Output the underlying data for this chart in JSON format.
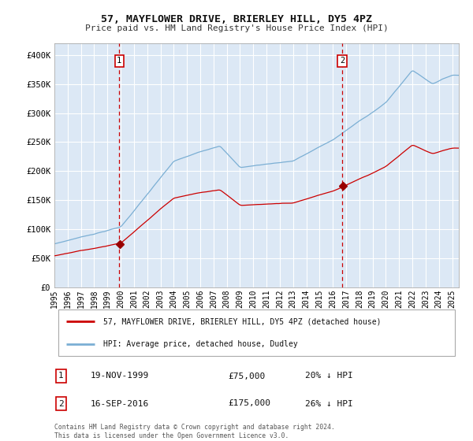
{
  "title": "57, MAYFLOWER DRIVE, BRIERLEY HILL, DY5 4PZ",
  "subtitle": "Price paid vs. HM Land Registry's House Price Index (HPI)",
  "background_color": "#dce8f5",
  "fig_bg_color": "#ffffff",
  "sale1_date": 1999.89,
  "sale1_price": 75000,
  "sale1_label": "1",
  "sale2_date": 2016.71,
  "sale2_price": 175000,
  "sale2_label": "2",
  "sale1_info": "19-NOV-1999",
  "sale1_price_str": "£75,000",
  "sale1_pct": "20% ↓ HPI",
  "sale2_info": "16-SEP-2016",
  "sale2_price_str": "£175,000",
  "sale2_pct": "26% ↓ HPI",
  "legend1_label": "57, MAYFLOWER DRIVE, BRIERLEY HILL, DY5 4PZ (detached house)",
  "legend2_label": "HPI: Average price, detached house, Dudley",
  "footer": "Contains HM Land Registry data © Crown copyright and database right 2024.\nThis data is licensed under the Open Government Licence v3.0.",
  "line1_color": "#cc0000",
  "line2_color": "#7bafd4",
  "marker_color": "#990000",
  "vline_color": "#cc0000",
  "grid_color": "#ffffff",
  "ylim": [
    0,
    420000
  ],
  "yticks": [
    0,
    50000,
    100000,
    150000,
    200000,
    250000,
    300000,
    350000,
    400000
  ],
  "ytick_labels": [
    "£0",
    "£50K",
    "£100K",
    "£150K",
    "£200K",
    "£250K",
    "£300K",
    "£350K",
    "£400K"
  ],
  "xstart": 1995.0,
  "xend": 2025.5,
  "xticks": [
    1995,
    1996,
    1997,
    1998,
    1999,
    2000,
    2001,
    2002,
    2003,
    2004,
    2005,
    2006,
    2007,
    2008,
    2009,
    2010,
    2011,
    2012,
    2013,
    2014,
    2015,
    2016,
    2017,
    2018,
    2019,
    2020,
    2021,
    2022,
    2023,
    2024,
    2025
  ]
}
